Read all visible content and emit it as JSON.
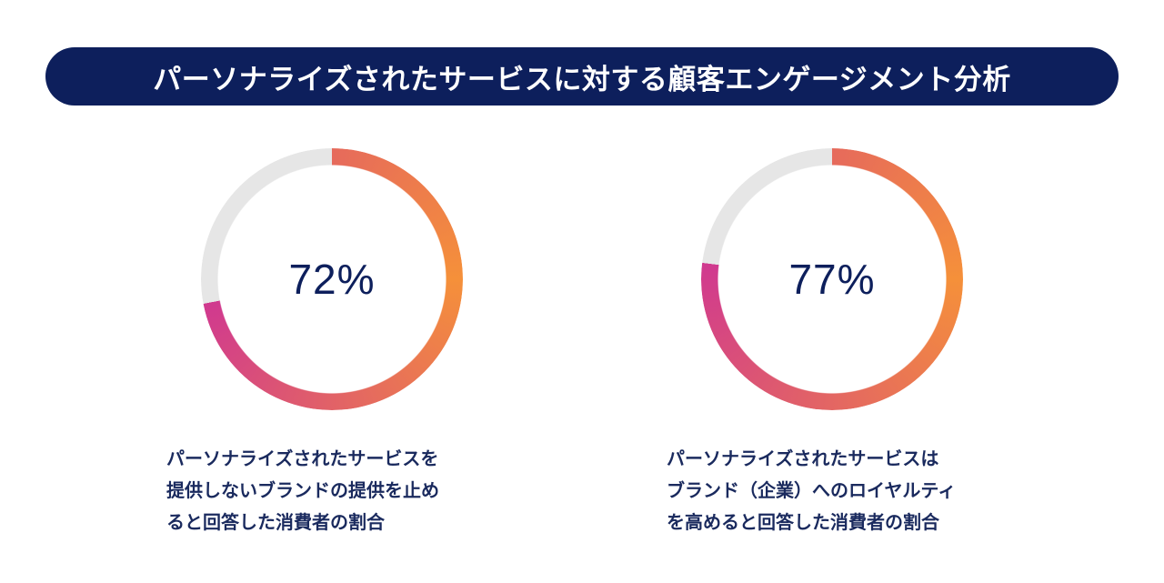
{
  "title": "パーソナライズされたサービスに対する顧客エンゲージメント分析",
  "colors": {
    "title_bg": "#0d1f5c",
    "track": "#e6e6e6",
    "gradient_start": "#e66a5c",
    "gradient_mid": "#f5903a",
    "gradient_end": "#d0398f",
    "text": "#0d1f5c"
  },
  "chart_data": [
    {
      "type": "pie",
      "variant": "donut",
      "value": 72,
      "max": 100,
      "center_label": "72%",
      "caption_lines": [
        "パーソナライズされたサービスを",
        "提供しないブランドの提供を止め",
        "ると回答した消費者の割合"
      ]
    },
    {
      "type": "pie",
      "variant": "donut",
      "value": 77,
      "max": 100,
      "center_label": "77%",
      "caption_lines": [
        "パーソナライズされたサービスは",
        "ブランド（企業）へのロイヤルティ",
        "を高めると回答した消費者の割合"
      ]
    }
  ]
}
